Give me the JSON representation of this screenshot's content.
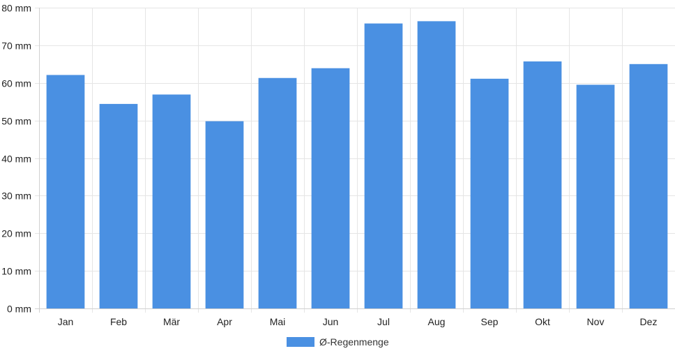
{
  "chart_data": {
    "type": "bar",
    "categories": [
      "Jan",
      "Feb",
      "Mär",
      "Apr",
      "Mai",
      "Jun",
      "Jul",
      "Aug",
      "Sep",
      "Okt",
      "Nov",
      "Dez"
    ],
    "series": [
      {
        "name": "Ø-Regenmenge",
        "values": [
          62.1,
          54.4,
          56.9,
          49.8,
          61.3,
          63.9,
          75.8,
          76.4,
          61.1,
          65.7,
          59.5,
          65.0
        ],
        "color": "#4a90e2"
      }
    ],
    "title": "",
    "xlabel": "",
    "ylabel": "",
    "ylim": [
      0,
      80
    ],
    "yticks": [
      "0 mm",
      "10 mm",
      "20 mm",
      "30 mm",
      "40 mm",
      "50 mm",
      "60 mm",
      "70 mm",
      "80 mm"
    ],
    "grid": true,
    "legend_position": "bottom-center"
  }
}
